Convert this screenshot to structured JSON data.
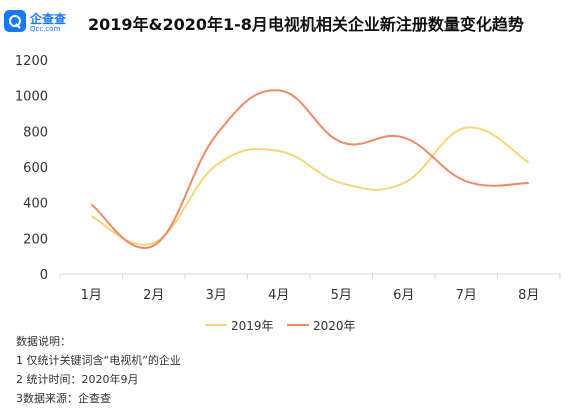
{
  "logo": {
    "name": "企查查",
    "url": "Qcc.com"
  },
  "chart_data": {
    "type": "line",
    "title": "2019年&2020年1-8月电视机相关企业新注册数量变化趋势",
    "xlabel": "",
    "ylabel": "",
    "categories": [
      "1月",
      "2月",
      "3月",
      "4月",
      "5月",
      "6月",
      "7月",
      "8月"
    ],
    "ylim": [
      0,
      1200
    ],
    "yticks": [
      0,
      200,
      400,
      600,
      800,
      1000,
      1200
    ],
    "grid": false,
    "legend_position": "bottom",
    "series": [
      {
        "name": "2019年",
        "color": "#f5d67a",
        "values": [
          325,
          175,
          610,
          690,
          510,
          510,
          820,
          625
        ]
      },
      {
        "name": "2020年",
        "color": "#ee8a66",
        "values": [
          390,
          160,
          780,
          1030,
          740,
          765,
          520,
          510
        ]
      }
    ]
  },
  "notes": [
    "数据说明：",
    "1 仅统计关键词含“电视机”的企业",
    "2 统计时间：2020年9月",
    "3数据来源：企查查"
  ]
}
